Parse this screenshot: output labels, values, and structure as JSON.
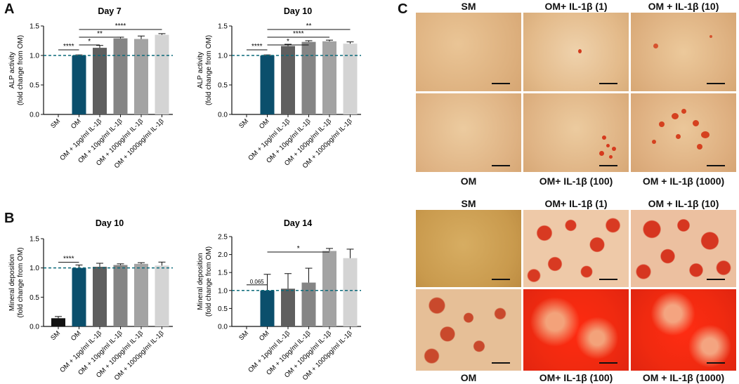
{
  "panel_letters": {
    "a": "A",
    "b": "B",
    "c": "C"
  },
  "x_categories": [
    "SM",
    "OM",
    "OM + 1pg/ml IL-1β",
    "OM + 10pg/ml IL-1β",
    "OM + 100pg/ml IL-1β",
    "OM + 1000pg/ml IL-1β"
  ],
  "colors": {
    "SM": "#111111",
    "OM": "#0b4f6c",
    "g1": "#5f5f5f",
    "g10": "#858585",
    "g100": "#a3a3a3",
    "g1000": "#d4d4d4",
    "reference_line": "#0b6a7a"
  },
  "chart_data": [
    {
      "type": "bar",
      "title": "Day 7",
      "ylabel": [
        "ALP activity",
        "(fold change from OM)"
      ],
      "ylim": [
        0,
        1.5
      ],
      "yticks": [
        "0.0",
        "0.5",
        "1.0",
        "1.5"
      ],
      "categories": [
        "SM",
        "OM",
        "OM + 1pg/ml IL-1β",
        "OM + 10pg/ml IL-1β",
        "OM + 100pg/ml IL-1β",
        "OM + 1000pg/ml IL-1β"
      ],
      "values": [
        0,
        1.0,
        1.13,
        1.29,
        1.28,
        1.35
      ],
      "errors": [
        0,
        0.01,
        0.04,
        0.02,
        0.05,
        0.02
      ],
      "reference_line": 1.0,
      "significance": [
        {
          "from": 0,
          "to": 1,
          "label": "****"
        },
        {
          "from": 1,
          "to": 2,
          "label": "*"
        },
        {
          "from": 1,
          "to": 3,
          "label": "**"
        },
        {
          "from": 1,
          "to": 5,
          "label": "****"
        }
      ]
    },
    {
      "type": "bar",
      "title": "Day 10",
      "ylabel": [
        "ALP activity",
        "(fold change from OM)"
      ],
      "ylim": [
        0,
        1.5
      ],
      "yticks": [
        "0.0",
        "0.5",
        "1.0",
        "1.5"
      ],
      "categories": [
        "SM",
        "OM",
        "OM + 1pg/ml IL-1β",
        "OM + 10pg/ml IL-1β",
        "OM + 100pg/ml IL-1β",
        "OM + 1000pg/ml IL-1β"
      ],
      "values": [
        0,
        1.0,
        1.16,
        1.23,
        1.24,
        1.2
      ],
      "errors": [
        0,
        0.01,
        0.03,
        0.02,
        0.02,
        0.03
      ],
      "reference_line": 1.0,
      "significance": [
        {
          "from": 0,
          "to": 1,
          "label": "****"
        },
        {
          "from": 1,
          "to": 3,
          "label": "*"
        },
        {
          "from": 1,
          "to": 4,
          "label": "****"
        },
        {
          "from": 1,
          "to": 5,
          "label": "**"
        }
      ]
    },
    {
      "type": "bar",
      "title": "Day 10",
      "ylabel": [
        "Mineral deposition",
        "(fold change from OM)"
      ],
      "ylim": [
        0,
        1.5
      ],
      "yticks": [
        "0.0",
        "0.5",
        "1.0",
        "1.5"
      ],
      "categories": [
        "SM",
        "OM",
        "OM + 1pg/ml IL-1β",
        "OM + 10pg/ml IL-1β",
        "OM + 100pg/ml IL-1β",
        "OM + 1000pg/ml IL-1β"
      ],
      "values": [
        0.14,
        1.0,
        1.02,
        1.05,
        1.07,
        1.04
      ],
      "errors": [
        0.03,
        0.05,
        0.06,
        0.02,
        0.02,
        0.06
      ],
      "reference_line": 1.0,
      "significance": [
        {
          "from": 0,
          "to": 1,
          "label": "****"
        }
      ]
    },
    {
      "type": "bar",
      "title": "Day 14",
      "ylabel": [
        "Mineral deposition",
        "(fold change from OM)"
      ],
      "ylim": [
        0,
        2.5
      ],
      "yticks": [
        "0.0",
        "0.5",
        "1.0",
        "1.5",
        "2.0",
        "2.5"
      ],
      "categories": [
        "SM",
        "OM",
        "OM + 1pg/ml IL-1β",
        "OM + 10pg/ml IL-1β",
        "OM + 100pg/ml IL-1β",
        "OM + 1000pg/ml IL-1β"
      ],
      "values": [
        0,
        1.0,
        1.05,
        1.22,
        2.1,
        1.9
      ],
      "errors": [
        0,
        0.45,
        0.42,
        0.4,
        0.07,
        0.25
      ],
      "reference_line": 1.0,
      "significance": [
        {
          "from": 0,
          "to": 1,
          "label": "0.065"
        },
        {
          "from": 1,
          "to": 4,
          "label": "*"
        }
      ]
    }
  ],
  "micrographs": {
    "upper": {
      "labels_top": [
        "SM",
        "OM+ IL-1β (1)",
        "OM + IL-1β (10)"
      ],
      "labels_bottom": [
        "OM",
        "OM+ IL-1β (100)",
        "OM + IL-1β (1000)"
      ]
    },
    "lower": {
      "labels_top": [
        "SM",
        "OM+ IL-1β (1)",
        "OM + IL-1β (10)"
      ],
      "labels_bottom": [
        "OM",
        "OM+ IL-1β (100)",
        "OM + IL-1β (1000)"
      ]
    }
  }
}
